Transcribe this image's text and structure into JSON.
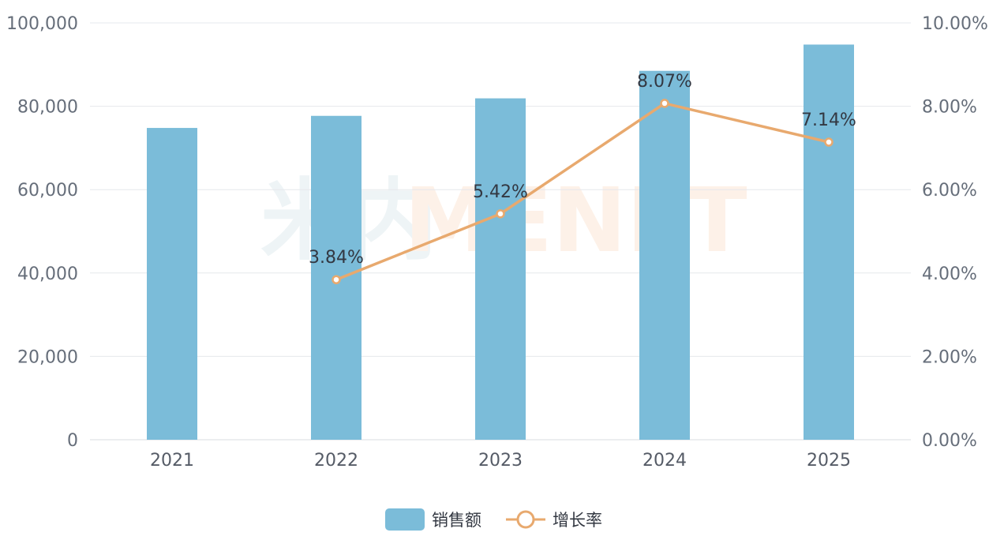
{
  "watermark": {
    "part1": "米内",
    "part2": "MENET"
  },
  "colors": {
    "bar": "#7bbcd9",
    "line": "#e8a96e",
    "grid": "#e6e8ec",
    "wm1": "#eef4f6",
    "wm2": "#fdf1e8"
  },
  "legend": {
    "bar_label": "销售额",
    "line_label": "增长率"
  },
  "chart_data": {
    "type": "bar",
    "categories": [
      "2021",
      "2022",
      "2023",
      "2024",
      "2025"
    ],
    "series": [
      {
        "name": "销售额",
        "type": "bar",
        "axis": "left",
        "values": [
          74800,
          77700,
          81900,
          88500,
          94800
        ]
      },
      {
        "name": "增长率",
        "type": "line",
        "axis": "right",
        "values": [
          null,
          3.84,
          5.42,
          8.07,
          7.14
        ],
        "labels": [
          "",
          "3.84%",
          "5.42%",
          "8.07%",
          "7.14%"
        ]
      }
    ],
    "y_left": {
      "lim": [
        0,
        100000
      ],
      "ticks": [
        "0",
        "20,000",
        "40,000",
        "60,000",
        "80,000",
        "100,000"
      ]
    },
    "y_right": {
      "lim": [
        0,
        10
      ],
      "ticks": [
        "0.00%",
        "2.00%",
        "4.00%",
        "6.00%",
        "8.00%",
        "10.00%"
      ]
    },
    "grid": true,
    "legend_position": "bottom-center"
  }
}
